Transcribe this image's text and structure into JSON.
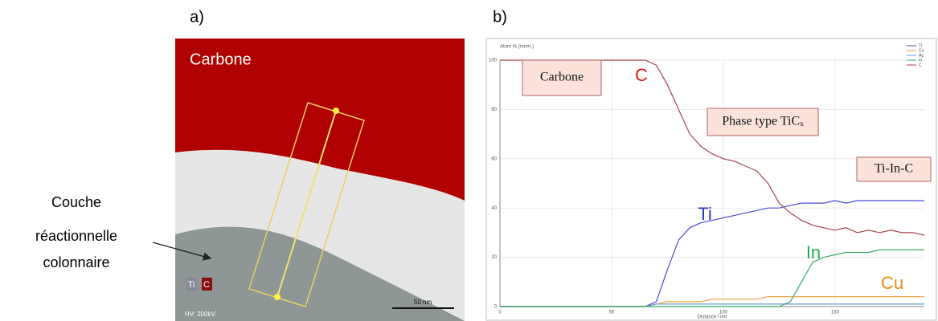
{
  "figure": {
    "panel_a": {
      "label": "a)",
      "map_title": "Carbone",
      "voltage": "HV: 200kV",
      "scale_bar": "50 nm",
      "legend": [
        "Ti",
        "C"
      ],
      "annotation": [
        "Couche",
        "réactionnelle",
        "colonnaire"
      ]
    },
    "panel_b": {
      "label": "b)"
    }
  },
  "chart_data": {
    "type": "line",
    "ylabel": "Atom % (norm.)",
    "xlabel": "Distance / nm",
    "x": [
      0,
      5,
      10,
      15,
      20,
      25,
      30,
      35,
      40,
      45,
      50,
      55,
      60,
      65,
      70,
      75,
      80,
      85,
      90,
      95,
      100,
      105,
      110,
      115,
      120,
      125,
      130,
      135,
      140,
      145,
      150,
      155,
      160,
      165,
      170,
      175,
      180,
      185,
      190
    ],
    "series": [
      {
        "name": "Ti",
        "color": "#4a4ad6",
        "values": [
          0,
          0,
          0,
          0,
          0,
          0,
          0,
          0,
          0,
          0,
          0,
          0,
          0,
          0,
          2,
          15,
          27,
          32,
          34,
          35,
          36,
          37,
          38,
          39,
          40,
          40,
          41,
          42,
          42,
          42,
          43,
          42,
          43,
          43,
          43,
          43,
          43,
          43,
          43
        ]
      },
      {
        "name": "Cu",
        "color": "#f0a040",
        "values": [
          0,
          0,
          0,
          0,
          0,
          0,
          0,
          0,
          0,
          0,
          0,
          0,
          0,
          0,
          1,
          2,
          2,
          2,
          2,
          3,
          3,
          3,
          3,
          3,
          4,
          4,
          4,
          4,
          4,
          4,
          4,
          4,
          4,
          4,
          4,
          4,
          4,
          4,
          4
        ]
      },
      {
        "name": "Ag",
        "color": "#6a9fc4",
        "values": [
          0,
          0,
          0,
          0,
          0,
          0,
          0,
          0,
          0,
          0,
          0,
          0,
          0,
          0,
          1,
          1,
          1,
          1,
          1,
          1,
          1,
          1,
          1,
          1,
          1,
          1,
          1,
          1,
          1,
          1,
          1,
          1,
          1,
          1,
          1,
          1,
          1,
          1,
          1
        ]
      },
      {
        "name": "In",
        "color": "#3aa86a",
        "values": [
          0,
          0,
          0,
          0,
          0,
          0,
          0,
          0,
          0,
          0,
          0,
          0,
          0,
          0,
          0,
          0,
          0,
          0,
          0,
          0,
          0,
          0,
          0,
          0,
          0,
          0,
          2,
          10,
          18,
          20,
          21,
          22,
          22,
          22,
          23,
          23,
          23,
          23,
          23
        ]
      },
      {
        "name": "C",
        "color": "#a5444c",
        "values": [
          100,
          100,
          100,
          100,
          100,
          100,
          100,
          100,
          100,
          100,
          100,
          100,
          100,
          100,
          98,
          90,
          80,
          70,
          65,
          62,
          60,
          59,
          57,
          55,
          50,
          42,
          38,
          35,
          33,
          32,
          31,
          32,
          30,
          31,
          30,
          31,
          30,
          30,
          29
        ]
      }
    ],
    "xlim": [
      0,
      190
    ],
    "ylim": [
      0,
      100
    ],
    "xticks": [
      0,
      50,
      100,
      150
    ],
    "yticks": [
      0,
      20,
      40,
      60,
      80,
      100
    ],
    "grid": true,
    "annotations": [
      {
        "text": "Carbone",
        "style": "box"
      },
      {
        "text": "C",
        "style": "label",
        "color": "#e01818"
      },
      {
        "text": "Phase type TiCₓ",
        "style": "box"
      },
      {
        "text": "Ti-In-C",
        "style": "box"
      },
      {
        "text": "Ti",
        "style": "label",
        "color": "#3232d0"
      },
      {
        "text": "In",
        "style": "label",
        "color": "#22aa55"
      },
      {
        "text": "Cu",
        "style": "label",
        "color": "#f08a10"
      }
    ]
  }
}
